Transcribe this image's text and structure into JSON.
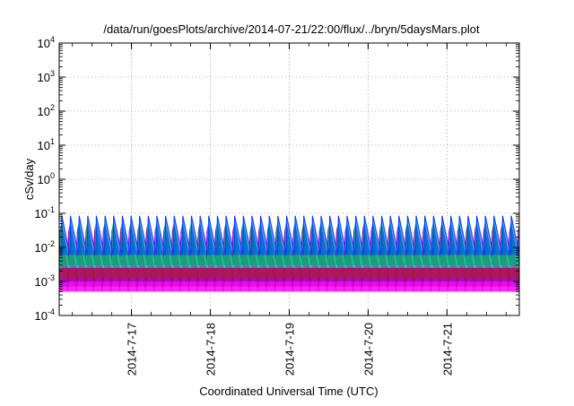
{
  "chart_data": {
    "type": "line",
    "title": "/data/run/goesPlots/archive/2014-07-21/22:00/flux/../bryn/5daysMars.plot",
    "xlabel": "Coordinated Universal Time (UTC)",
    "ylabel": "cSv/day",
    "yscale": "log",
    "ylim": [
      0.0001,
      10000
    ],
    "xlim": [
      "2014-07-16 02:00",
      "2014-07-21 22:00"
    ],
    "grid": true,
    "y_ticks": [
      {
        "value": 0.0001,
        "base": "10",
        "exp": "-4"
      },
      {
        "value": 0.001,
        "base": "10",
        "exp": "-3"
      },
      {
        "value": 0.01,
        "base": "10",
        "exp": "-2"
      },
      {
        "value": 0.1,
        "base": "10",
        "exp": "-1"
      },
      {
        "value": 1,
        "base": "10",
        "exp": "0"
      },
      {
        "value": 10,
        "base": "10",
        "exp": "1"
      },
      {
        "value": 100,
        "base": "10",
        "exp": "2"
      },
      {
        "value": 1000,
        "base": "10",
        "exp": "3"
      },
      {
        "value": 10000,
        "base": "10",
        "exp": "4"
      }
    ],
    "x_ticks": [
      {
        "value": "2014-07-17 00:00",
        "label": "2014-7-17"
      },
      {
        "value": "2014-07-18 00:00",
        "label": "2014-7-18"
      },
      {
        "value": "2014-07-19 00:00",
        "label": "2014-7-19"
      },
      {
        "value": "2014-07-20 00:00",
        "label": "2014-7-20"
      },
      {
        "value": "2014-07-21 00:00",
        "label": "2014-7-21"
      }
    ],
    "cycle_hours": 2.63,
    "series": [
      {
        "color": "#ff00ff",
        "peak": 0.02,
        "trough": 0.0005
      },
      {
        "color": "#cc00cc",
        "peak": 0.03,
        "trough": 0.0007
      },
      {
        "color": "#8800aa",
        "peak": 0.035,
        "trough": 0.001
      },
      {
        "color": "#aa2222",
        "peak": 0.04,
        "trough": 0.0012
      },
      {
        "color": "#00dddd",
        "peak": 0.045,
        "trough": 0.0025
      },
      {
        "color": "#00aa66",
        "peak": 0.05,
        "trough": 0.003
      },
      {
        "color": "#0044ff",
        "peak": 0.085,
        "trough": 0.006
      }
    ]
  }
}
